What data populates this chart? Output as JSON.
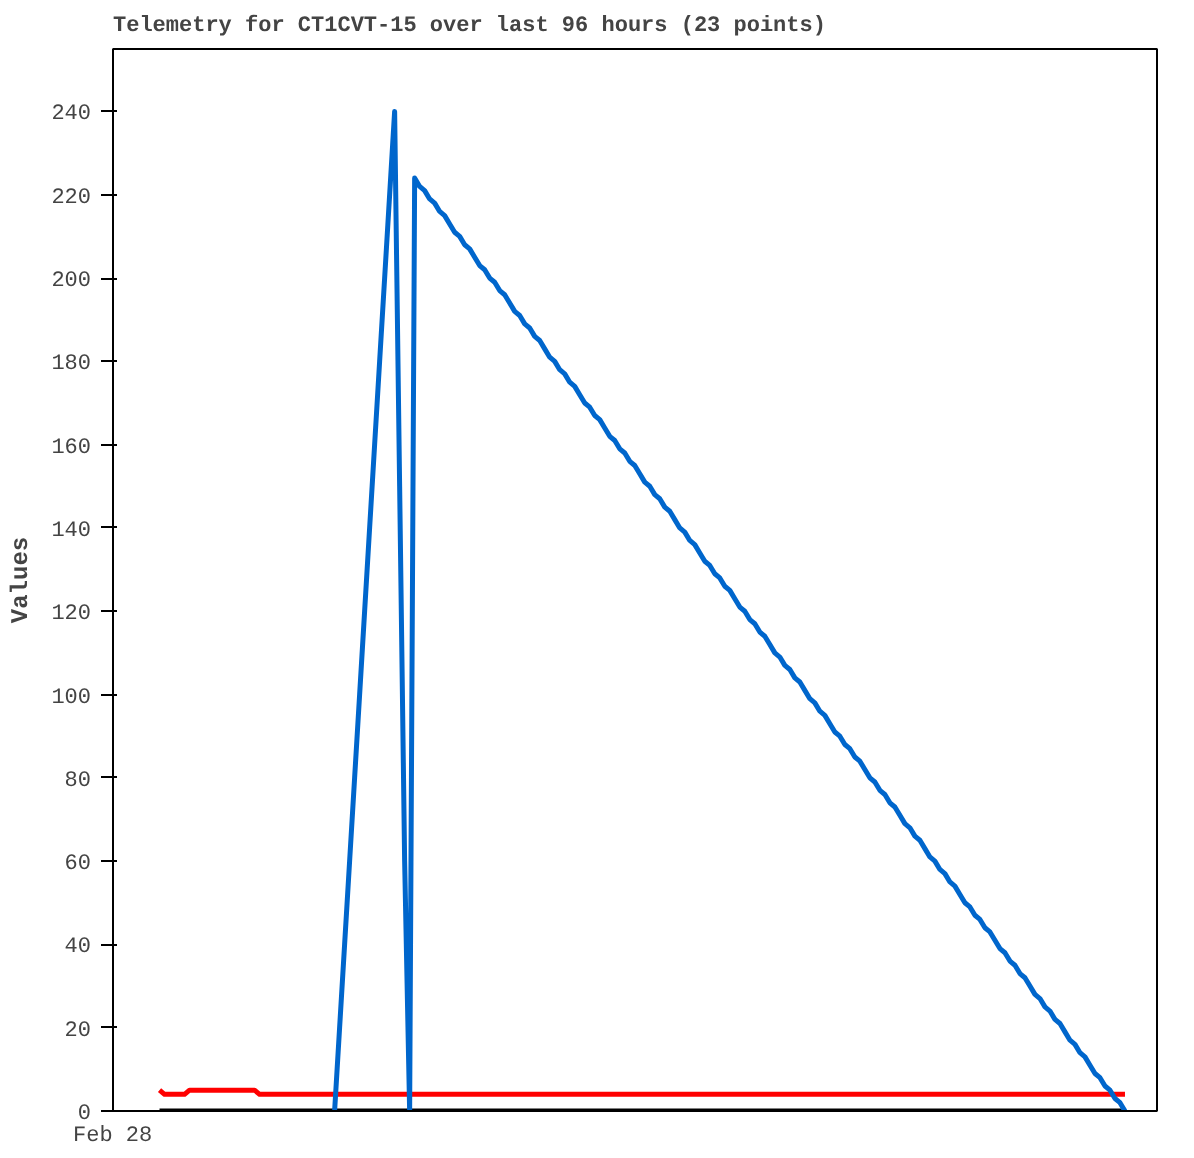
{
  "chart_data": {
    "type": "line",
    "title": "Telemetry for CT1CVT-15 over last 96 hours (23 points)",
    "ylabel": "Values",
    "annotations": [
      "Feb 28"
    ],
    "tick_labels": "y",
    "categories": [
      null,
      null,
      null,
      null,
      null,
      null,
      null,
      null,
      null,
      null,
      null,
      null,
      null,
      null,
      null,
      null,
      null,
      null,
      null,
      null,
      null,
      null,
      null,
      null,
      null,
      null,
      null,
      null,
      null,
      null,
      null,
      null,
      null,
      null,
      null,
      null,
      null,
      null,
      null,
      null,
      null,
      null,
      null,
      null,
      null,
      null,
      null,
      null,
      null,
      null,
      null,
      null,
      null,
      null,
      null,
      null,
      null,
      null,
      null,
      null,
      null,
      null,
      null,
      null,
      null,
      null,
      null,
      null,
      null,
      null,
      null,
      null,
      null,
      null,
      null,
      null,
      null,
      null,
      null,
      null,
      null,
      null,
      null,
      null,
      null,
      null,
      null,
      null,
      null,
      null,
      null,
      null,
      null,
      null,
      null,
      null,
      null,
      null,
      null,
      null,
      null,
      null,
      null,
      null,
      null,
      null,
      null,
      null,
      null,
      null,
      null,
      null,
      null,
      null,
      null,
      null,
      null,
      null,
      null,
      null,
      null,
      null,
      null,
      null,
      null,
      null,
      null,
      null,
      null,
      null,
      null,
      null,
      null,
      null,
      null,
      null,
      null,
      null,
      null,
      null,
      null,
      null,
      null,
      null,
      null,
      null,
      null,
      null,
      null,
      null,
      null,
      null,
      null,
      null,
      null,
      null,
      null,
      null,
      null,
      null,
      null,
      null,
      null,
      null,
      null,
      null,
      null,
      null,
      null,
      null,
      null,
      null,
      null,
      null,
      null,
      null,
      null,
      null,
      null,
      null,
      null,
      null,
      null,
      null,
      null,
      null,
      null,
      null,
      null,
      null,
      null,
      null,
      null,
      null
    ],
    "ylim": [
      0,
      255
    ],
    "yticks": [
      0,
      20,
      40,
      60,
      80,
      100,
      120,
      140,
      160,
      180,
      200,
      220,
      240
    ],
    "grid": false,
    "marker": "none",
    "line_style": "solid",
    "series": [
      {
        "color": "#000000",
        "values": [
          0,
          0,
          0,
          0,
          0,
          0,
          0,
          0,
          0,
          0,
          0,
          0,
          0,
          0,
          0,
          0,
          0,
          0,
          0,
          0,
          0,
          0,
          0,
          0,
          0,
          0,
          0,
          0,
          0,
          0,
          0,
          0,
          0,
          0,
          0,
          0,
          0,
          0,
          0,
          0,
          0,
          0,
          0,
          0,
          0,
          0,
          0,
          0,
          0,
          0,
          0,
          0,
          0,
          0,
          0,
          0,
          0,
          0,
          0,
          0,
          0,
          0,
          0,
          0,
          0,
          0,
          0,
          0,
          0,
          0,
          0,
          0,
          0,
          0,
          0,
          0,
          0,
          0,
          0,
          0,
          0,
          0,
          0,
          0,
          0,
          0,
          0,
          0,
          0,
          0,
          0,
          0,
          0,
          0,
          0,
          0,
          0,
          0,
          0,
          0,
          0,
          0,
          0,
          0,
          0,
          0,
          0,
          0,
          0,
          0,
          0,
          0,
          0,
          0,
          0,
          0,
          0,
          0,
          0,
          0,
          0,
          0,
          0,
          0,
          0,
          0,
          0,
          0,
          0,
          0,
          0,
          0,
          0,
          0,
          0,
          0,
          0,
          0,
          0,
          0,
          0,
          0,
          0,
          0,
          0,
          0,
          0,
          0,
          0,
          0,
          0,
          0,
          0,
          0,
          0,
          0,
          0,
          0,
          0,
          0,
          0,
          0,
          0,
          0,
          0,
          0,
          0,
          0,
          0,
          0,
          0,
          0,
          0,
          0,
          0,
          0,
          0,
          0,
          0,
          0,
          0,
          0,
          0,
          0,
          0,
          0,
          0,
          0,
          0,
          0,
          0,
          0,
          0,
          0
        ]
      },
      {
        "color": "#ff0000",
        "values": [
          5,
          4,
          4,
          4,
          4,
          4,
          5,
          5,
          5,
          5,
          5,
          5,
          5,
          5,
          5,
          5,
          5,
          5,
          5,
          5,
          4,
          4,
          4,
          4,
          4,
          4,
          4,
          4,
          4,
          4,
          4,
          4,
          4,
          4,
          4,
          4,
          4,
          4,
          4,
          4,
          4,
          4,
          4,
          4,
          4,
          4,
          4,
          4,
          4,
          4,
          4,
          4,
          4,
          4,
          4,
          4,
          4,
          4,
          4,
          4,
          4,
          4,
          4,
          4,
          4,
          4,
          4,
          4,
          4,
          4,
          4,
          4,
          4,
          4,
          4,
          4,
          4,
          4,
          4,
          4,
          4,
          4,
          4,
          4,
          4,
          4,
          4,
          4,
          4,
          4,
          4,
          4,
          4,
          4,
          4,
          4,
          4,
          4,
          4,
          4,
          4,
          4,
          4,
          4,
          4,
          4,
          4,
          4,
          4,
          4,
          4,
          4,
          4,
          4,
          4,
          4,
          4,
          4,
          4,
          4,
          4,
          4,
          4,
          4,
          4,
          4,
          4,
          4,
          4,
          4,
          4,
          4,
          4,
          4,
          4,
          4,
          4,
          4,
          4,
          4,
          4,
          4,
          4,
          4,
          4,
          4,
          4,
          4,
          4,
          4,
          4,
          4,
          4,
          4,
          4,
          4,
          4,
          4,
          4,
          4,
          4,
          4,
          4,
          4,
          4,
          4,
          4,
          4,
          4,
          4,
          4,
          4,
          4,
          4,
          4,
          4,
          4,
          4,
          4,
          4,
          4,
          4,
          4,
          4,
          4,
          4,
          4,
          4,
          4,
          4,
          4,
          4,
          4,
          4
        ]
      },
      {
        "color": "#0066cc",
        "values": [
          null,
          null,
          null,
          null,
          null,
          null,
          null,
          null,
          null,
          null,
          null,
          null,
          null,
          null,
          null,
          null,
          null,
          null,
          null,
          null,
          null,
          null,
          null,
          null,
          null,
          null,
          null,
          null,
          null,
          null,
          null,
          null,
          null,
          null,
          null,
          0,
          20,
          40,
          60,
          80,
          100,
          120,
          140,
          160,
          180,
          200,
          220,
          240,
          150,
          60,
          0,
          224,
          222,
          221,
          219,
          218,
          216,
          215,
          213,
          211,
          210,
          208,
          207,
          205,
          203,
          202,
          200,
          199,
          197,
          196,
          194,
          192,
          191,
          189,
          188,
          186,
          185,
          183,
          181,
          180,
          178,
          177,
          175,
          174,
          172,
          170,
          169,
          167,
          166,
          164,
          162,
          161,
          159,
          158,
          156,
          155,
          153,
          151,
          150,
          148,
          147,
          145,
          144,
          142,
          140,
          139,
          137,
          136,
          134,
          132,
          131,
          129,
          128,
          126,
          125,
          123,
          121,
          120,
          118,
          117,
          115,
          114,
          112,
          110,
          109,
          107,
          106,
          104,
          103,
          101,
          99,
          98,
          96,
          95,
          93,
          91,
          90,
          88,
          87,
          85,
          84,
          82,
          80,
          79,
          77,
          76,
          74,
          73,
          71,
          69,
          68,
          66,
          65,
          63,
          61,
          60,
          58,
          57,
          55,
          54,
          52,
          50,
          49,
          47,
          46,
          44,
          43,
          41,
          39,
          38,
          36,
          35,
          33,
          32,
          30,
          28,
          27,
          25,
          24,
          22,
          21,
          19,
          17,
          16,
          14,
          13,
          11,
          9,
          8,
          6,
          5,
          3,
          2,
          0
        ]
      }
    ]
  }
}
